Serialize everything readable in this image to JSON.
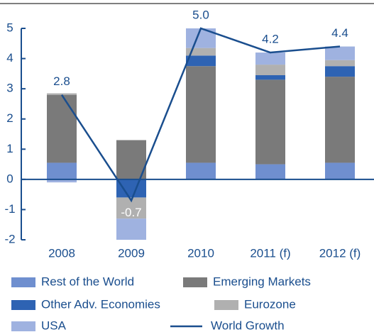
{
  "chart_data": {
    "type": "bar",
    "categories": [
      "2008",
      "2009",
      "2010",
      "2011 (f)",
      "2012 (f)"
    ],
    "series": [
      {
        "name": "Rest of the World",
        "color": "#6f8fcf",
        "values": [
          0.55,
          0,
          0.55,
          0.5,
          0.55
        ]
      },
      {
        "name": "Emerging Markets",
        "color": "#7a7a7a",
        "values": [
          2.25,
          1.3,
          3.2,
          2.8,
          2.85
        ]
      },
      {
        "name": "Other Adv. Economies",
        "color": "#2e63b3",
        "values": [
          0,
          -0.6,
          0.35,
          0.15,
          0.35
        ]
      },
      {
        "name": "Eurozone",
        "color": "#b0b0b0",
        "values": [
          0.05,
          -0.7,
          0.25,
          0.35,
          0.2
        ]
      },
      {
        "name": "USA",
        "color": "#9fb2e0",
        "values": [
          -0.1,
          -0.7,
          0.65,
          0.4,
          0.45
        ]
      }
    ],
    "line": {
      "name": "World Growth",
      "color": "#1a4e8e",
      "values": [
        2.8,
        -0.7,
        5.0,
        4.2,
        4.4
      ],
      "value_labels": [
        "2.8",
        "-0.7",
        "5.0",
        "4.2",
        "4.4"
      ]
    },
    "ylim": [
      -2,
      5
    ],
    "yticks": [
      -2,
      -1,
      0,
      1,
      2,
      3,
      4,
      5
    ]
  }
}
